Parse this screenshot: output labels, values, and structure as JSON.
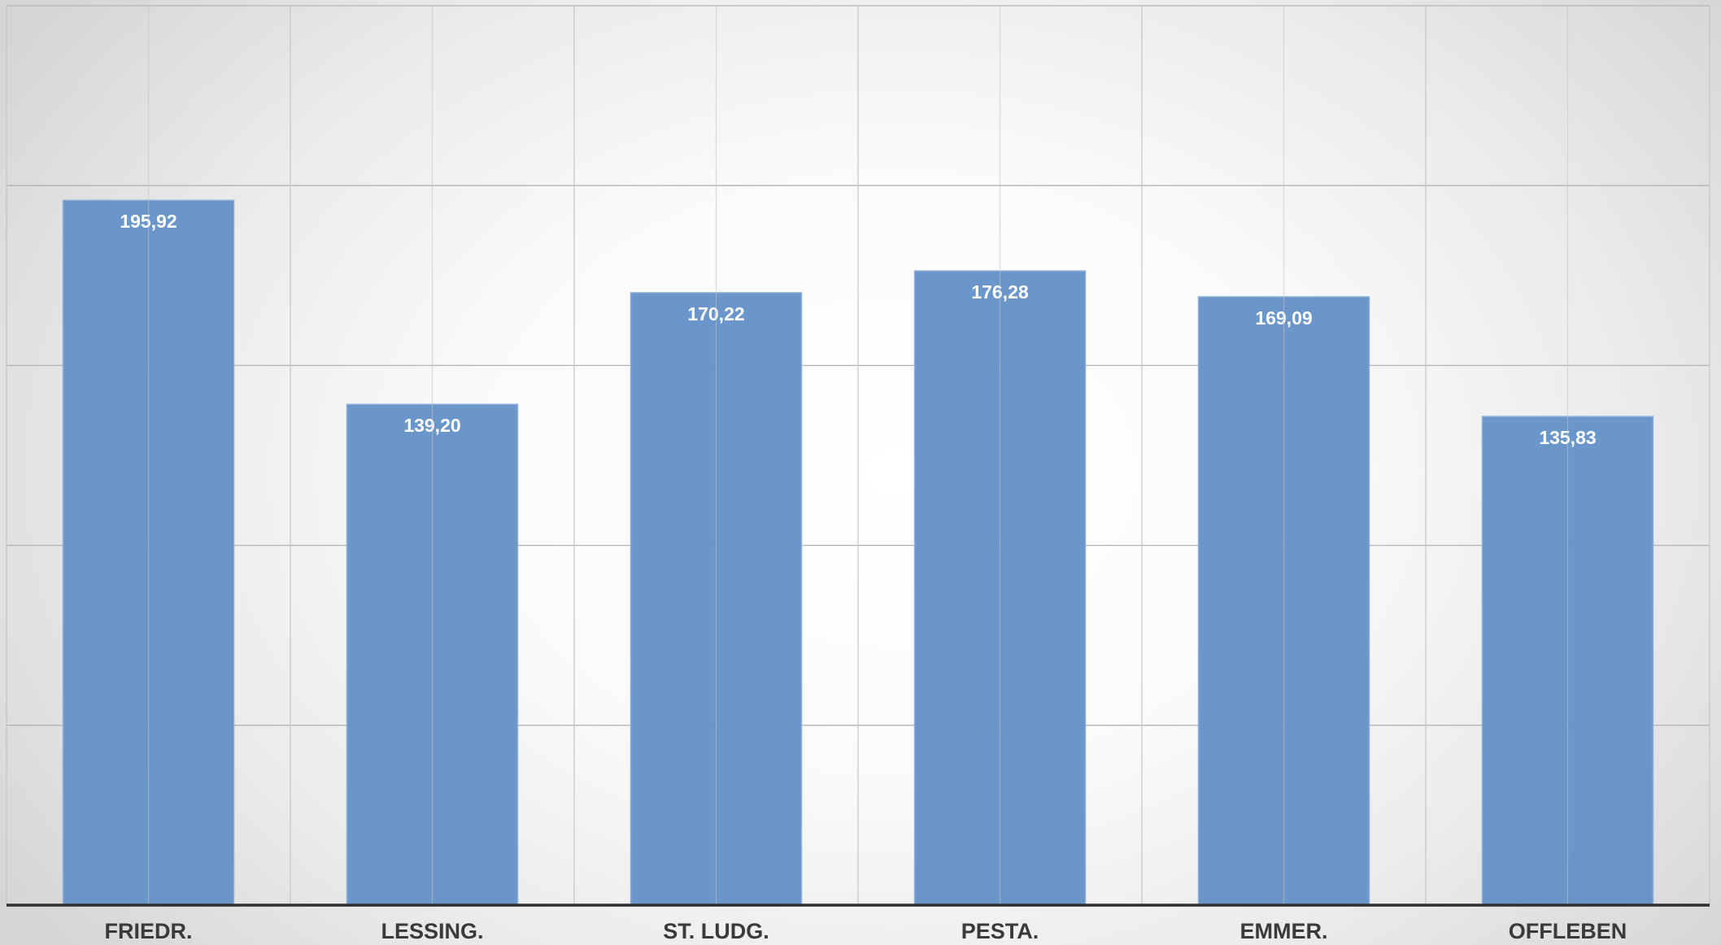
{
  "chart_data": {
    "type": "bar",
    "categories": [
      "FRIEDR.",
      "LESSING.",
      "ST. LUDG.",
      "PESTA.",
      "EMMER.",
      "OFFLEBEN"
    ],
    "values": [
      195.92,
      139.2,
      170.22,
      176.28,
      169.09,
      135.83
    ],
    "value_labels": [
      "195,92",
      "139,20",
      "170,22",
      "176,28",
      "169,09",
      "135,83"
    ],
    "ylim": [
      0,
      250
    ],
    "y_tick_step": 50,
    "grid": true,
    "legend": "none",
    "title": "",
    "xlabel": "",
    "ylabel": "",
    "colors": {
      "bar": "#6593c8",
      "bar_edge": "#8cb0da",
      "value_label": "#ffffff",
      "category_label": "#3a3a3a",
      "grid": "#b3b3b3",
      "axis": "#2e2e2e"
    }
  }
}
